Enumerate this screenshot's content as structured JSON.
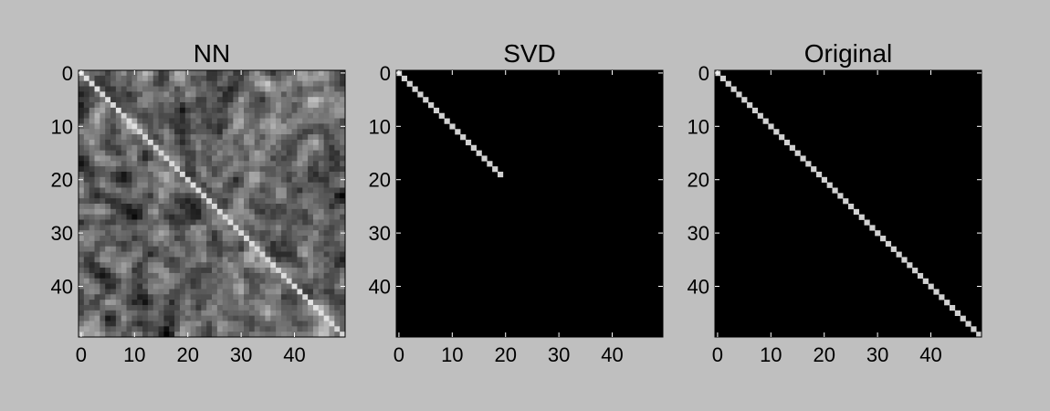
{
  "background_color": "#bfbfbf",
  "chart_data": [
    {
      "type": "heatmap",
      "title": "NN",
      "matrix_size": 50,
      "description_values": "50x50 grayscale image: noisy gray background (values roughly 0.25-0.6) with a bright diagonal line from (0,0) to (49,49); a faint anti-diagonal texture is visible.",
      "diagonal_range": [
        0,
        49
      ],
      "xticks": [
        0,
        10,
        20,
        30,
        40
      ],
      "yticks": [
        0,
        10,
        20,
        30,
        40
      ],
      "xlim": [
        0,
        49
      ],
      "ylim": [
        49,
        0
      ],
      "colormap": "gray"
    },
    {
      "type": "heatmap",
      "title": "SVD",
      "matrix_size": 50,
      "description_values": "50x50 matrix of zeros except a bright diagonal from (0,0) to (19,19).",
      "diagonal_range": [
        0,
        19
      ],
      "xticks": [
        0,
        10,
        20,
        30,
        40
      ],
      "yticks": [
        0,
        10,
        20,
        30,
        40
      ],
      "xlim": [
        0,
        49
      ],
      "ylim": [
        49,
        0
      ],
      "colormap": "gray"
    },
    {
      "type": "heatmap",
      "title": "Original",
      "matrix_size": 50,
      "description_values": "50x50 identity matrix: zeros everywhere except a bright diagonal from (0,0) to (49,49).",
      "diagonal_range": [
        0,
        49
      ],
      "xticks": [
        0,
        10,
        20,
        30,
        40
      ],
      "yticks": [
        0,
        10,
        20,
        30,
        40
      ],
      "xlim": [
        0,
        49
      ],
      "ylim": [
        49,
        0
      ],
      "colormap": "gray"
    }
  ]
}
